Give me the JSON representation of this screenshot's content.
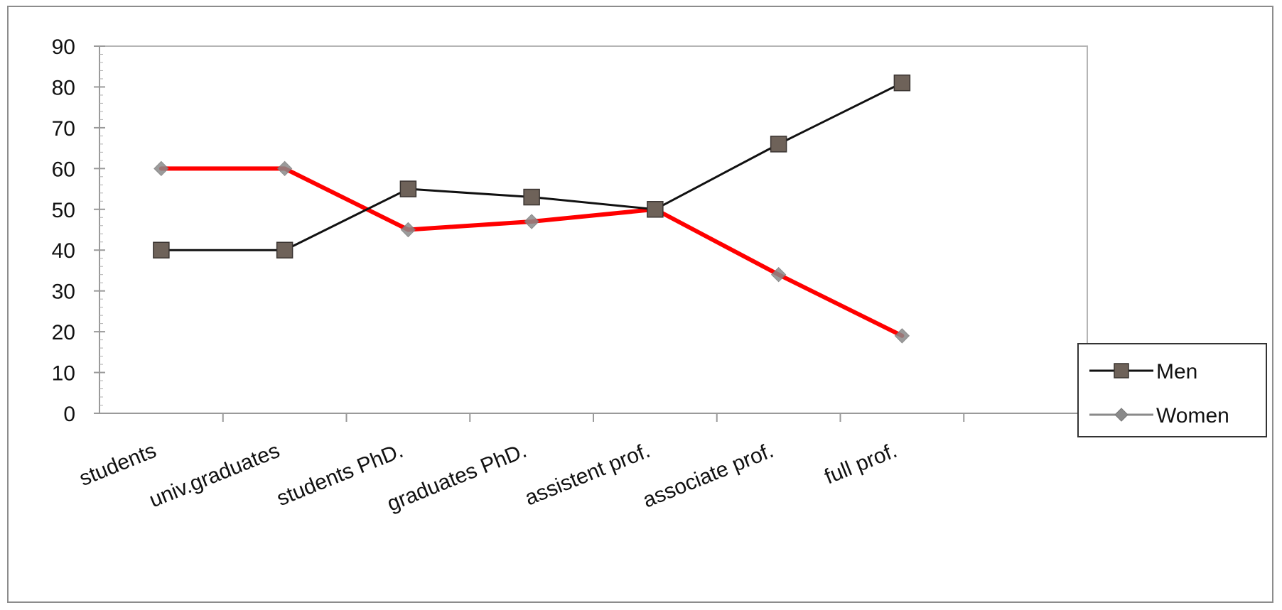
{
  "chart_data": {
    "type": "line",
    "categories": [
      "students",
      "univ.graduates",
      "students PhD.",
      "graduates PhD.",
      "assistent prof.",
      "associate prof.",
      "full prof."
    ],
    "series": [
      {
        "name": "Men",
        "values": [
          40,
          40,
          55,
          53,
          50,
          66,
          81
        ],
        "color": "#111111",
        "marker": "square",
        "marker_color": "#6e6259"
      },
      {
        "name": "Women",
        "values": [
          60,
          60,
          45,
          47,
          50,
          34,
          19
        ],
        "color": "#ff0000",
        "marker": "diamond",
        "marker_color": "#8a8a8a"
      }
    ],
    "yticks": [
      "0",
      "10",
      "20",
      "30",
      "40",
      "50",
      "60",
      "70",
      "80",
      "90"
    ],
    "ylim": [
      0,
      90
    ],
    "grid": false,
    "legend_position": "right"
  }
}
